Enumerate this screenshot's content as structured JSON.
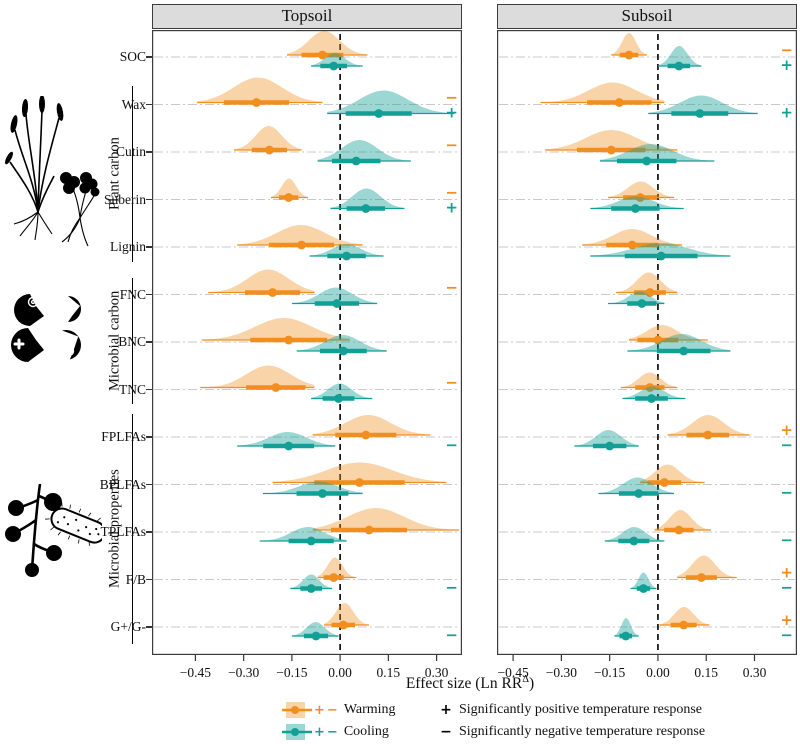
{
  "figure_title": "Temperature response effect sizes of soil carbon components",
  "colors": {
    "warming": "#f28e1e",
    "warming_fill": "#f5a33c",
    "cooling": "#12a096",
    "cooling_fill": "#35ada3",
    "header_bg": "#dcdcdc",
    "grid": "#c9c9c9",
    "zero_line": "#000000",
    "border": "#3c3c3c"
  },
  "icons": [
    {
      "name": "plant-illustration-icon",
      "meaning": "plant with roots (plant carbon)"
    },
    {
      "name": "microbial-carbon-pacman-icon",
      "meaning": "four microbe pac-man shapes (microbial carbon)"
    },
    {
      "name": "fungi-and-bacterium-icon",
      "meaning": "fungal spores and rod bacterium (microbial properties)"
    }
  ],
  "legend": {
    "warming_label": "Warming",
    "cooling_label": "Cooling",
    "plus_symbol": "+",
    "minus_symbol": "−",
    "positive_text": "Significantly positive temperature response",
    "negative_text": "Significantly negative temperature response"
  },
  "chart_data": {
    "type": "ridgeline-forest",
    "panels": [
      {
        "title": "Topsoil",
        "x_domain": [
          -0.585,
          0.379
        ]
      },
      {
        "title": "Subsoil",
        "x_domain": [
          -0.5,
          0.432
        ]
      }
    ],
    "x_axis": {
      "label_prefix": "Effect size (Ln RR",
      "label_sup": "Δ",
      "label_suffix": ")",
      "ticks": [
        -0.45,
        -0.3,
        -0.15,
        0.0,
        0.15,
        0.3
      ]
    },
    "groups": [
      {
        "label": "Plant carbon",
        "from": 1,
        "to": 4
      },
      {
        "label": "Microbial carbon",
        "from": 5,
        "to": 7
      },
      {
        "label": "Microbial properties",
        "from": 8,
        "to": 12
      }
    ],
    "rows": [
      {
        "label": "SOC",
        "topsoil": {
          "warming": {
            "mean": -0.055,
            "range": [
              -0.165,
              0.085
            ],
            "peak": 24,
            "sig": ""
          },
          "cooling": {
            "mean": -0.02,
            "range": [
              -0.09,
              0.07
            ],
            "peak": 13,
            "sig": ""
          }
        },
        "subsoil": {
          "warming": {
            "mean": -0.09,
            "range": [
              -0.145,
              -0.035
            ],
            "peak": 22,
            "sig": "-"
          },
          "cooling": {
            "mean": 0.065,
            "range": [
              0.0,
              0.135
            ],
            "peak": 20,
            "sig": "+"
          }
        }
      },
      {
        "label": "Wax",
        "topsoil": {
          "warming": {
            "mean": -0.26,
            "range": [
              -0.445,
              -0.055
            ],
            "peak": 25,
            "sig": "-"
          },
          "cooling": {
            "mean": 0.12,
            "range": [
              -0.04,
              0.355
            ],
            "peak": 23,
            "sig": "+"
          }
        },
        "subsoil": {
          "warming": {
            "mean": -0.12,
            "range": [
              -0.365,
              0.02
            ],
            "peak": 20,
            "sig": ""
          },
          "cooling": {
            "mean": 0.13,
            "range": [
              -0.03,
              0.31
            ],
            "peak": 18,
            "sig": "+"
          }
        }
      },
      {
        "label": "Cutin",
        "topsoil": {
          "warming": {
            "mean": -0.22,
            "range": [
              -0.33,
              -0.12
            ],
            "peak": 24,
            "sig": "-"
          },
          "cooling": {
            "mean": 0.05,
            "range": [
              -0.07,
              0.22
            ],
            "peak": 21,
            "sig": ""
          }
        },
        "subsoil": {
          "warming": {
            "mean": -0.145,
            "range": [
              -0.35,
              0.06
            ],
            "peak": 20,
            "sig": ""
          },
          "cooling": {
            "mean": -0.035,
            "range": [
              -0.18,
              0.175
            ],
            "peak": 17,
            "sig": ""
          }
        }
      },
      {
        "label": "Suberin",
        "topsoil": {
          "warming": {
            "mean": -0.16,
            "range": [
              -0.215,
              -0.1
            ],
            "peak": 19,
            "sig": "-"
          },
          "cooling": {
            "mean": 0.08,
            "range": [
              -0.03,
              0.2
            ],
            "peak": 20,
            "sig": "+"
          }
        },
        "subsoil": {
          "warming": {
            "mean": -0.055,
            "range": [
              -0.155,
              0.05
            ],
            "peak": 16,
            "sig": ""
          },
          "cooling": {
            "mean": -0.07,
            "range": [
              -0.21,
              0.08
            ],
            "peak": 12,
            "sig": ""
          }
        }
      },
      {
        "label": "Lignin",
        "topsoil": {
          "warming": {
            "mean": -0.12,
            "range": [
              -0.32,
              0.07
            ],
            "peak": 20,
            "sig": ""
          },
          "cooling": {
            "mean": 0.02,
            "range": [
              -0.095,
              0.135
            ],
            "peak": 12,
            "sig": ""
          }
        },
        "subsoil": {
          "warming": {
            "mean": -0.08,
            "range": [
              -0.235,
              0.075
            ],
            "peak": 16,
            "sig": ""
          },
          "cooling": {
            "mean": 0.01,
            "range": [
              -0.21,
              0.225
            ],
            "peak": 13,
            "sig": ""
          }
        }
      },
      {
        "label": "FNC",
        "topsoil": {
          "warming": {
            "mean": -0.21,
            "range": [
              -0.41,
              -0.08
            ],
            "peak": 23,
            "sig": "-"
          },
          "cooling": {
            "mean": -0.01,
            "range": [
              -0.15,
              0.115
            ],
            "peak": 16,
            "sig": ""
          }
        },
        "subsoil": {
          "warming": {
            "mean": -0.025,
            "range": [
              -0.13,
              0.06
            ],
            "peak": 20,
            "sig": ""
          },
          "cooling": {
            "mean": -0.05,
            "range": [
              -0.155,
              0.02
            ],
            "peak": 12,
            "sig": ""
          }
        }
      },
      {
        "label": "BNC",
        "topsoil": {
          "warming": {
            "mean": -0.16,
            "range": [
              -0.43,
              0.03
            ],
            "peak": 22,
            "sig": ""
          },
          "cooling": {
            "mean": 0.01,
            "range": [
              -0.135,
              0.145
            ],
            "peak": 16,
            "sig": ""
          }
        },
        "subsoil": {
          "warming": {
            "mean": 0.0,
            "range": [
              -0.09,
              0.155
            ],
            "peak": 15,
            "sig": ""
          },
          "cooling": {
            "mean": 0.08,
            "range": [
              -0.095,
              0.225
            ],
            "peak": 17,
            "sig": ""
          }
        }
      },
      {
        "label": "TNC",
        "topsoil": {
          "warming": {
            "mean": -0.2,
            "range": [
              -0.435,
              -0.08
            ],
            "peak": 22,
            "sig": "-"
          },
          "cooling": {
            "mean": -0.005,
            "range": [
              -0.09,
              0.1
            ],
            "peak": 15,
            "sig": ""
          }
        },
        "subsoil": {
          "warming": {
            "mean": -0.025,
            "range": [
              -0.115,
              0.06
            ],
            "peak": 15,
            "sig": ""
          },
          "cooling": {
            "mean": -0.02,
            "range": [
              -0.11,
              0.085
            ],
            "peak": 12,
            "sig": ""
          }
        }
      },
      {
        "label": "FPLFAs",
        "topsoil": {
          "warming": {
            "mean": 0.08,
            "range": [
              -0.085,
              0.28
            ],
            "peak": 20,
            "sig": ""
          },
          "cooling": {
            "mean": -0.16,
            "range": [
              -0.32,
              -0.015
            ],
            "peak": 14,
            "sig": "-"
          }
        },
        "subsoil": {
          "warming": {
            "mean": 0.155,
            "range": [
              0.03,
              0.285
            ],
            "peak": 20,
            "sig": "+"
          },
          "cooling": {
            "mean": -0.15,
            "range": [
              -0.26,
              -0.06
            ],
            "peak": 16,
            "sig": "-"
          }
        }
      },
      {
        "label": "BPLFAs",
        "topsoil": {
          "warming": {
            "mean": 0.06,
            "range": [
              -0.21,
              0.33
            ],
            "peak": 20,
            "sig": ""
          },
          "cooling": {
            "mean": -0.055,
            "range": [
              -0.24,
              0.07
            ],
            "peak": 12,
            "sig": ""
          }
        },
        "subsoil": {
          "warming": {
            "mean": 0.02,
            "range": [
              -0.055,
              0.145
            ],
            "peak": 18,
            "sig": ""
          },
          "cooling": {
            "mean": -0.06,
            "range": [
              -0.185,
              0.05
            ],
            "peak": 16,
            "sig": "-"
          }
        }
      },
      {
        "label": "TPLFAs",
        "topsoil": {
          "warming": {
            "mean": 0.09,
            "range": [
              -0.085,
              0.37
            ],
            "peak": 22,
            "sig": ""
          },
          "cooling": {
            "mean": -0.09,
            "range": [
              -0.25,
              0.02
            ],
            "peak": 14,
            "sig": ""
          }
        },
        "subsoil": {
          "warming": {
            "mean": 0.065,
            "range": [
              -0.01,
              0.165
            ],
            "peak": 20,
            "sig": ""
          },
          "cooling": {
            "mean": -0.075,
            "range": [
              -0.165,
              0.02
            ],
            "peak": 14,
            "sig": "-"
          }
        }
      },
      {
        "label": "F/B",
        "topsoil": {
          "warming": {
            "mean": -0.02,
            "range": [
              -0.07,
              0.05
            ],
            "peak": 20,
            "sig": ""
          },
          "cooling": {
            "mean": -0.09,
            "range": [
              -0.155,
              -0.025
            ],
            "peak": 14,
            "sig": "-"
          }
        },
        "subsoil": {
          "warming": {
            "mean": 0.135,
            "range": [
              0.06,
              0.245
            ],
            "peak": 22,
            "sig": "+"
          },
          "cooling": {
            "mean": -0.045,
            "range": [
              -0.085,
              -0.005
            ],
            "peak": 16,
            "sig": "-"
          }
        }
      },
      {
        "label": "G+/G-",
        "topsoil": {
          "warming": {
            "mean": 0.01,
            "range": [
              -0.05,
              0.09
            ],
            "peak": 22,
            "sig": ""
          },
          "cooling": {
            "mean": -0.075,
            "range": [
              -0.15,
              -0.005
            ],
            "peak": 14,
            "sig": "-"
          }
        },
        "subsoil": {
          "warming": {
            "mean": 0.08,
            "range": [
              0.005,
              0.16
            ],
            "peak": 18,
            "sig": "+"
          },
          "cooling": {
            "mean": -0.1,
            "range": [
              -0.135,
              -0.06
            ],
            "peak": 18,
            "sig": "-"
          }
        }
      }
    ]
  }
}
